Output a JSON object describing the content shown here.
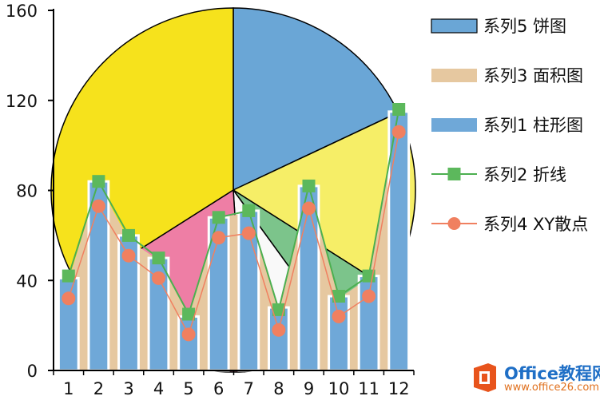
{
  "chart_data": {
    "type": "combo",
    "yticks": [
      "0",
      "40",
      "80",
      "120",
      "160"
    ],
    "ylim": [
      0,
      160
    ],
    "categories": [
      "1",
      "2",
      "3",
      "4",
      "5",
      "6",
      "7",
      "8",
      "9",
      "10",
      "11",
      "12"
    ],
    "pie": {
      "name": "系列5 饼图",
      "values": [
        18,
        16,
        6,
        9,
        17,
        34
      ],
      "colors": [
        "#6aa6d6",
        "#f6ee67",
        "#7cc48b",
        "#f9f9f9",
        "#ee7ea5",
        "#f6e21c"
      ]
    },
    "series": [
      {
        "name": "系列3 面积图",
        "type": "area",
        "color": "#e6c8a0",
        "values": [
          40,
          83,
          58,
          49,
          25,
          68,
          70,
          27,
          82,
          32,
          41,
          116
        ]
      },
      {
        "name": "系列1 柱形图",
        "type": "bar",
        "color": "#6fa8d8",
        "values": [
          41,
          84,
          60,
          50,
          24,
          68,
          71,
          28,
          82,
          33,
          42,
          115
        ]
      },
      {
        "name": "系列2 折线",
        "type": "line",
        "color": "#4caf50",
        "values": [
          42,
          84,
          60,
          50,
          25,
          68,
          71,
          27,
          82,
          33,
          42,
          116
        ]
      },
      {
        "name": "系列4 XY散点",
        "type": "scatter",
        "color": "#f08060",
        "values": [
          32,
          73,
          51,
          41,
          16,
          59,
          61,
          18,
          72,
          24,
          33,
          106
        ]
      }
    ],
    "legend_position": "right"
  },
  "watermark": {
    "brand": "Office教程网",
    "url": "www.office26.com"
  }
}
